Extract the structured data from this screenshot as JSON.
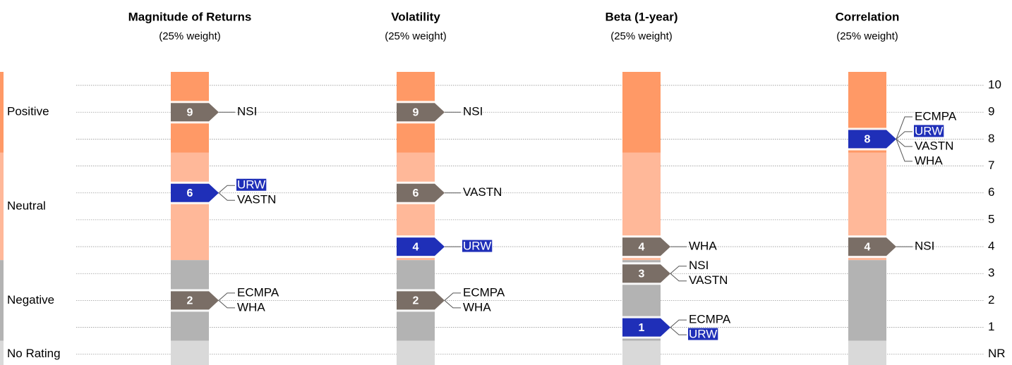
{
  "chart_data": {
    "type": "rating-scale",
    "ylim": [
      -0.4,
      10.5
    ],
    "yticks": [
      {
        "value": 0,
        "label": "NR"
      },
      1,
      2,
      3,
      4,
      5,
      6,
      7,
      8,
      9,
      10
    ],
    "grid": true,
    "zones": [
      {
        "label": "Positive",
        "range": [
          7.5,
          10.5
        ],
        "label_at": 9,
        "color": "#ff9966"
      },
      {
        "label": "Neutral",
        "range": [
          3.5,
          7.5
        ],
        "label_at": 5.5,
        "color": "#ffb899"
      },
      {
        "label": "Negative",
        "range": [
          0.5,
          3.5
        ],
        "label_at": 2,
        "color": "#b3b3b3"
      },
      {
        "label": "No Rating",
        "range": [
          -0.4,
          0.5
        ],
        "label_at": 0,
        "color": "#d9d9d9"
      }
    ],
    "panels": [
      {
        "title": "Magnitude of Returns",
        "subtitle": "(25% weight)",
        "ratings": [
          {
            "value": 9,
            "color": "#7a6e66",
            "labels": [
              {
                "text": "NSI",
                "highlight": false
              }
            ]
          },
          {
            "value": 6,
            "color": "#1f2fb8",
            "labels": [
              {
                "text": "URW",
                "highlight": true
              },
              {
                "text": "VASTN",
                "highlight": false
              }
            ]
          },
          {
            "value": 2,
            "color": "#7a6e66",
            "labels": [
              {
                "text": "ECMPA",
                "highlight": false
              },
              {
                "text": "WHA",
                "highlight": false
              }
            ]
          }
        ]
      },
      {
        "title": "Volatility",
        "subtitle": "(25% weight)",
        "ratings": [
          {
            "value": 9,
            "color": "#7a6e66",
            "labels": [
              {
                "text": "NSI",
                "highlight": false
              }
            ]
          },
          {
            "value": 6,
            "color": "#7a6e66",
            "labels": [
              {
                "text": "VASTN",
                "highlight": false
              }
            ]
          },
          {
            "value": 4,
            "color": "#1f2fb8",
            "labels": [
              {
                "text": "URW",
                "highlight": true
              }
            ]
          },
          {
            "value": 2,
            "color": "#7a6e66",
            "labels": [
              {
                "text": "ECMPA",
                "highlight": false
              },
              {
                "text": "WHA",
                "highlight": false
              }
            ]
          }
        ]
      },
      {
        "title": "Beta (1-year)",
        "subtitle": "(25% weight)",
        "ratings": [
          {
            "value": 4,
            "color": "#7a6e66",
            "labels": [
              {
                "text": "WHA",
                "highlight": false
              }
            ]
          },
          {
            "value": 3,
            "color": "#7a6e66",
            "labels": [
              {
                "text": "NSI",
                "highlight": false
              },
              {
                "text": "VASTN",
                "highlight": false
              }
            ]
          },
          {
            "value": 1,
            "color": "#1f2fb8",
            "labels": [
              {
                "text": "ECMPA",
                "highlight": false
              },
              {
                "text": "URW",
                "highlight": true
              }
            ]
          }
        ]
      },
      {
        "title": "Correlation",
        "subtitle": "(25% weight)",
        "ratings": [
          {
            "value": 8,
            "color": "#1f2fb8",
            "labels": [
              {
                "text": "ECMPA",
                "highlight": false
              },
              {
                "text": "URW",
                "highlight": true
              },
              {
                "text": "VASTN",
                "highlight": false
              },
              {
                "text": "WHA",
                "highlight": false
              }
            ]
          },
          {
            "value": 4,
            "color": "#7a6e66",
            "labels": [
              {
                "text": "NSI",
                "highlight": false
              }
            ]
          }
        ]
      }
    ]
  }
}
